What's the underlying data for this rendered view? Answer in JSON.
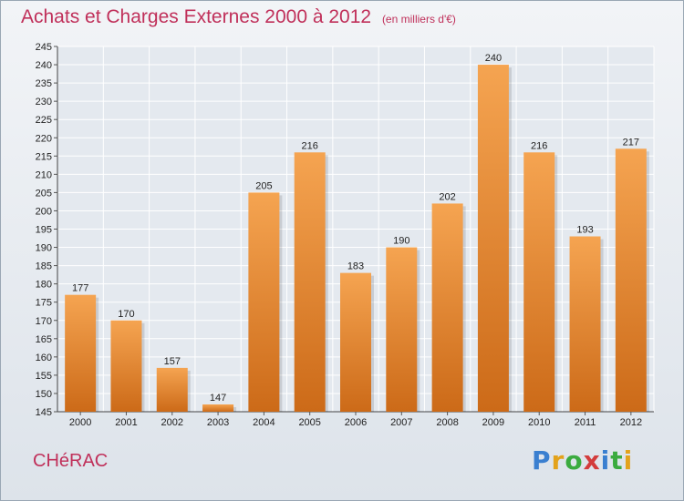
{
  "header": {
    "title": "Achats et Charges Externes 2000 à 2012",
    "subtitle": "(en milliers d'€)"
  },
  "footer": {
    "city": "CHéRAC",
    "brand": "Proxiti"
  },
  "colors": {
    "title": "#c0305a",
    "bar_top": "#f5a451",
    "bar_bottom": "#cc6a18",
    "grid": "#ffffff"
  },
  "chart_data": {
    "type": "bar",
    "title": "Achats et Charges Externes 2000 à 2012",
    "xlabel": "",
    "ylabel": "",
    "categories": [
      "2000",
      "2001",
      "2002",
      "2003",
      "2004",
      "2005",
      "2006",
      "2007",
      "2008",
      "2009",
      "2010",
      "2011",
      "2012"
    ],
    "values": [
      177,
      170,
      157,
      147,
      205,
      216,
      183,
      190,
      202,
      240,
      216,
      193,
      217
    ],
    "ylim": [
      145,
      245
    ],
    "ytick_step": 5,
    "grid": true,
    "legend": "none"
  }
}
